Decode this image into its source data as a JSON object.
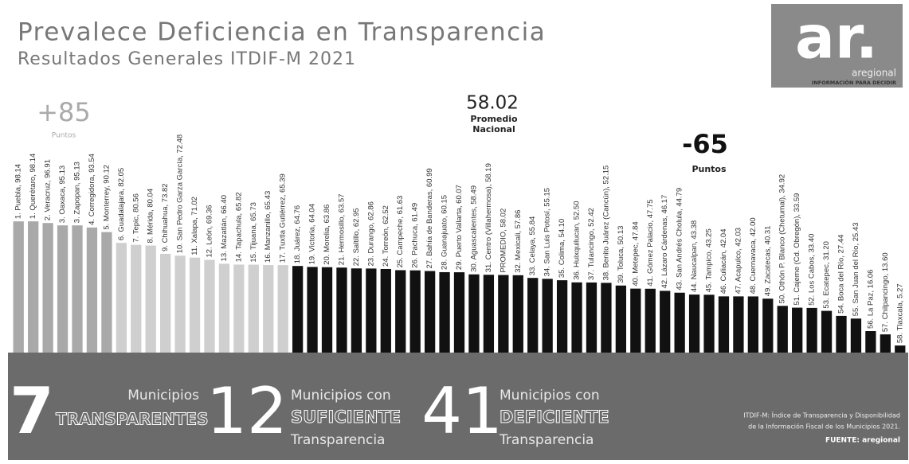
{
  "chart_data": {
    "type": "bar",
    "title": "Prevalece Deficiencia en Transparencia",
    "subtitle": "Resultados Generales ITDIF-M 2021",
    "annotations": [
      {
        "text": "+85",
        "note": "Puntos"
      },
      {
        "text": "58.02",
        "note": "Promedio Nacional"
      },
      {
        "text": "-65",
        "note": "Puntos"
      }
    ],
    "categories": [
      "1. Puebla, 98.14",
      "1. Querétaro, 98.14",
      "2. Veracruz, 96.91",
      "3. Oaxaca, 95.13",
      "3. Zapopan, 95.13",
      "4. Corregidora, 93.54",
      "5. Monterrey, 90.12",
      "6. Guadalajara, 82.05",
      "7. Tepic, 80.56",
      "8. Mérida, 80.04",
      "9. Chihuahua, 73.82",
      "10. San Pedro Garza García, 72.48",
      "11. Xalapa, 71.02",
      "12. León, 69.36",
      "13. Mazatlán, 66.40",
      "14. Tapachula, 65.82",
      "15. Tijuana, 65.73",
      "16. Manzanillo, 65.43",
      "17. Tuxtla Gutiérrez, 65.39",
      "18. Juárez, 64.76",
      "19. Victoria, 64.04",
      "20. Morelia, 63.86",
      "21. Hermosillo, 63.57",
      "22. Saltillo, 62.95",
      "23. Durango, 62.86",
      "24. Torreón, 62.52",
      "25. Campeche, 61.63",
      "26. Pachuca, 61.49",
      "27. Bahía de Banderas, 60.99",
      "28. Guanajuato, 60.15",
      "29. Puerto Vallarta, 60.07",
      "30. Aguascalientes, 58.49",
      "31. Centro (Villahermosa), 58.19",
      "PROMEDIO, 58.02",
      "32. Mexicali, 57.86",
      "33. Celaya, 55.84",
      "34. San Luis Potosí, 55.15",
      "35. Colima, 54.10",
      "36. Huixquilucan, 52.50",
      "37. Tulancingo, 52.42",
      "38. Benito Juárez (Cancún), 52.15",
      "39. Toluca, 50.13",
      "40. Metepec, 47.84",
      "41. Gómez Palacio, 47.75",
      "42. Lázaro Cárdenas, 46.17",
      "43. San Andrés Cholula, 44.79",
      "44. Naucalpan, 43.38",
      "45. Tampico, 43.25",
      "46. Culiacán, 42.04",
      "47. Acapulco, 42.03",
      "48. Cuernavaca, 42.00",
      "49. Zacatecas, 40.31",
      "50. Othón P. Blanco (Chetumal), 34.92",
      "51. Cajeme (Cd. Obregón), 33.59",
      "52. Los Cabos, 33.40",
      "53. Ecatepec, 31.20",
      "54. Boca del Río, 27.44",
      "55. San Juan del Río, 25.43",
      "56. La Paz, 16.06",
      "57. Chilpancingo, 13.60",
      "58. Tlaxcala, 5.27"
    ],
    "values": [
      98.14,
      98.14,
      96.91,
      95.13,
      95.13,
      93.54,
      90.12,
      82.05,
      80.56,
      80.04,
      73.82,
      72.48,
      71.02,
      69.36,
      66.4,
      65.82,
      65.73,
      65.43,
      65.39,
      64.76,
      64.04,
      63.86,
      63.57,
      62.95,
      62.86,
      62.52,
      61.63,
      61.49,
      60.99,
      60.15,
      60.07,
      58.49,
      58.19,
      58.02,
      57.86,
      55.84,
      55.15,
      54.1,
      52.5,
      52.42,
      52.15,
      50.13,
      47.84,
      47.75,
      46.17,
      44.79,
      43.38,
      43.25,
      42.04,
      42.03,
      42.0,
      40.31,
      34.92,
      33.59,
      33.4,
      31.2,
      27.44,
      25.43,
      16.06,
      13.6,
      5.27
    ],
    "colors": [
      "#a9a9a9",
      "#a9a9a9",
      "#a9a9a9",
      "#a9a9a9",
      "#a9a9a9",
      "#a9a9a9",
      "#a9a9a9",
      "#cfcfcf",
      "#cfcfcf",
      "#cfcfcf",
      "#cfcfcf",
      "#cfcfcf",
      "#cfcfcf",
      "#cfcfcf",
      "#cfcfcf",
      "#cfcfcf",
      "#cfcfcf",
      "#cfcfcf",
      "#cfcfcf",
      "#111111",
      "#111111",
      "#111111",
      "#111111",
      "#111111",
      "#111111",
      "#111111",
      "#111111",
      "#111111",
      "#111111",
      "#111111",
      "#111111",
      "#111111",
      "#111111",
      "#111111",
      "#111111",
      "#111111",
      "#111111",
      "#111111",
      "#111111",
      "#111111",
      "#111111",
      "#111111",
      "#111111",
      "#111111",
      "#111111",
      "#111111",
      "#111111",
      "#111111",
      "#111111",
      "#111111",
      "#111111",
      "#111111",
      "#111111",
      "#111111",
      "#111111",
      "#111111",
      "#111111",
      "#111111",
      "#111111",
      "#111111",
      "#111111"
    ]
  },
  "logo": {
    "mark": "ar.",
    "name": "aregional",
    "tagline": "INFORMACIÓN PARA DECIDIR"
  },
  "summary": [
    {
      "count": "7",
      "line1": "Municipios",
      "line2": "TRANSPARENTES"
    },
    {
      "count": "12",
      "line1": "Municipios con",
      "line2": "SUFICIENTE",
      "line3": "Transparencia"
    },
    {
      "count": "41",
      "line1": "Municipios con",
      "line2": "DEFICIENTE",
      "line3": "Transparencia"
    }
  ],
  "footnote": {
    "line1": "ITDIF-M: Índice de Transparencia y Disponibilidad",
    "line2": "de la Información Fiscal de los Municipios 2021.",
    "source": "FUENTE: aregional"
  }
}
